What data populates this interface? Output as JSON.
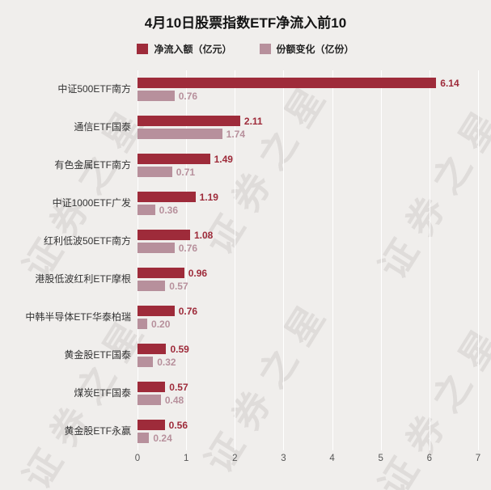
{
  "title": "4月10日股票指数ETF净流入前10",
  "watermark": "证券之星",
  "legend": [
    {
      "label": "净流入额（亿元）",
      "color": "#9e2b3a"
    },
    {
      "label": "份额变化（亿份）",
      "color": "#b7909c"
    }
  ],
  "chart_data": {
    "type": "bar",
    "orientation": "horizontal",
    "title": "4月10日股票指数ETF净流入前10",
    "categories": [
      "中证500ETF南方",
      "通信ETF国泰",
      "有色金属ETF南方",
      "中证1000ETF广发",
      "红利低波50ETF南方",
      "港股低波红利ETF摩根",
      "中韩半导体ETF华泰柏瑞",
      "黄金股ETF国泰",
      "煤炭ETF国泰",
      "黄金股ETF永赢"
    ],
    "series": [
      {
        "name": "净流入额（亿元）",
        "color": "#9e2b3a",
        "values": [
          6.14,
          2.11,
          1.49,
          1.19,
          1.08,
          0.96,
          0.76,
          0.59,
          0.57,
          0.56
        ]
      },
      {
        "name": "份额变化（亿份）",
        "color": "#b7909c",
        "values": [
          0.76,
          1.74,
          0.71,
          0.36,
          0.76,
          0.57,
          0.2,
          0.32,
          0.48,
          0.24
        ]
      }
    ],
    "xlim": [
      0,
      7
    ],
    "xticks": [
      0,
      1,
      2,
      3,
      4,
      5,
      6,
      7
    ],
    "grid": true,
    "legend_position": "top"
  }
}
